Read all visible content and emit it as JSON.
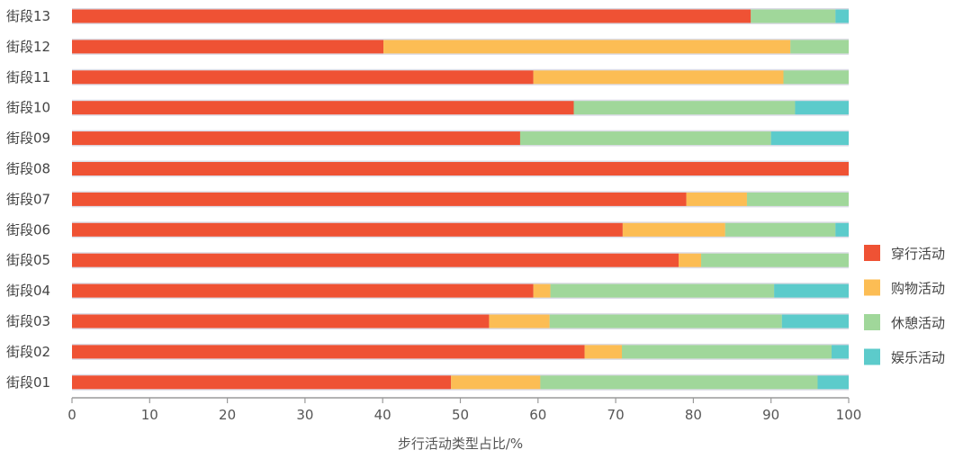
{
  "chart_data": {
    "type": "bar",
    "orientation": "horizontal",
    "stacked": true,
    "categories": [
      "街段13",
      "街段12",
      "街段11",
      "街段10",
      "街段09",
      "街段08",
      "街段07",
      "街段06",
      "街段05",
      "街段04",
      "街段03",
      "街段02",
      "街段01"
    ],
    "series": [
      {
        "name": "穿行活动",
        "color": "#ef5234",
        "values": [
          87.4,
          40.1,
          59.4,
          64.6,
          57.7,
          100,
          79.1,
          70.9,
          78.1,
          59.4,
          53.7,
          66.0,
          48.8
        ]
      },
      {
        "name": "购物活动",
        "color": "#fcbd54",
        "values": [
          0,
          52.4,
          32.2,
          0,
          0,
          0,
          7.8,
          13.2,
          2.9,
          2.2,
          7.8,
          4.8,
          11.5
        ]
      },
      {
        "name": "休憩活动",
        "color": "#a0d79a",
        "values": [
          10.9,
          7.5,
          8.4,
          28.5,
          32.3,
          0,
          13.1,
          14.2,
          19.0,
          28.8,
          29.9,
          27.0,
          35.7
        ]
      },
      {
        "name": "娱乐活动",
        "color": "#5ccbcb",
        "values": [
          1.7,
          0,
          0,
          6.9,
          10.0,
          0,
          0,
          1.7,
          0,
          9.6,
          8.6,
          2.2,
          4.0
        ]
      }
    ],
    "xlim": [
      0,
      100
    ],
    "xticks": [
      0,
      10,
      20,
      30,
      40,
      50,
      60,
      70,
      80,
      90,
      100
    ],
    "xlabel": "步行活动类型占比/%",
    "ylabel": "",
    "title": "",
    "grid": false,
    "legend_position": "right"
  }
}
